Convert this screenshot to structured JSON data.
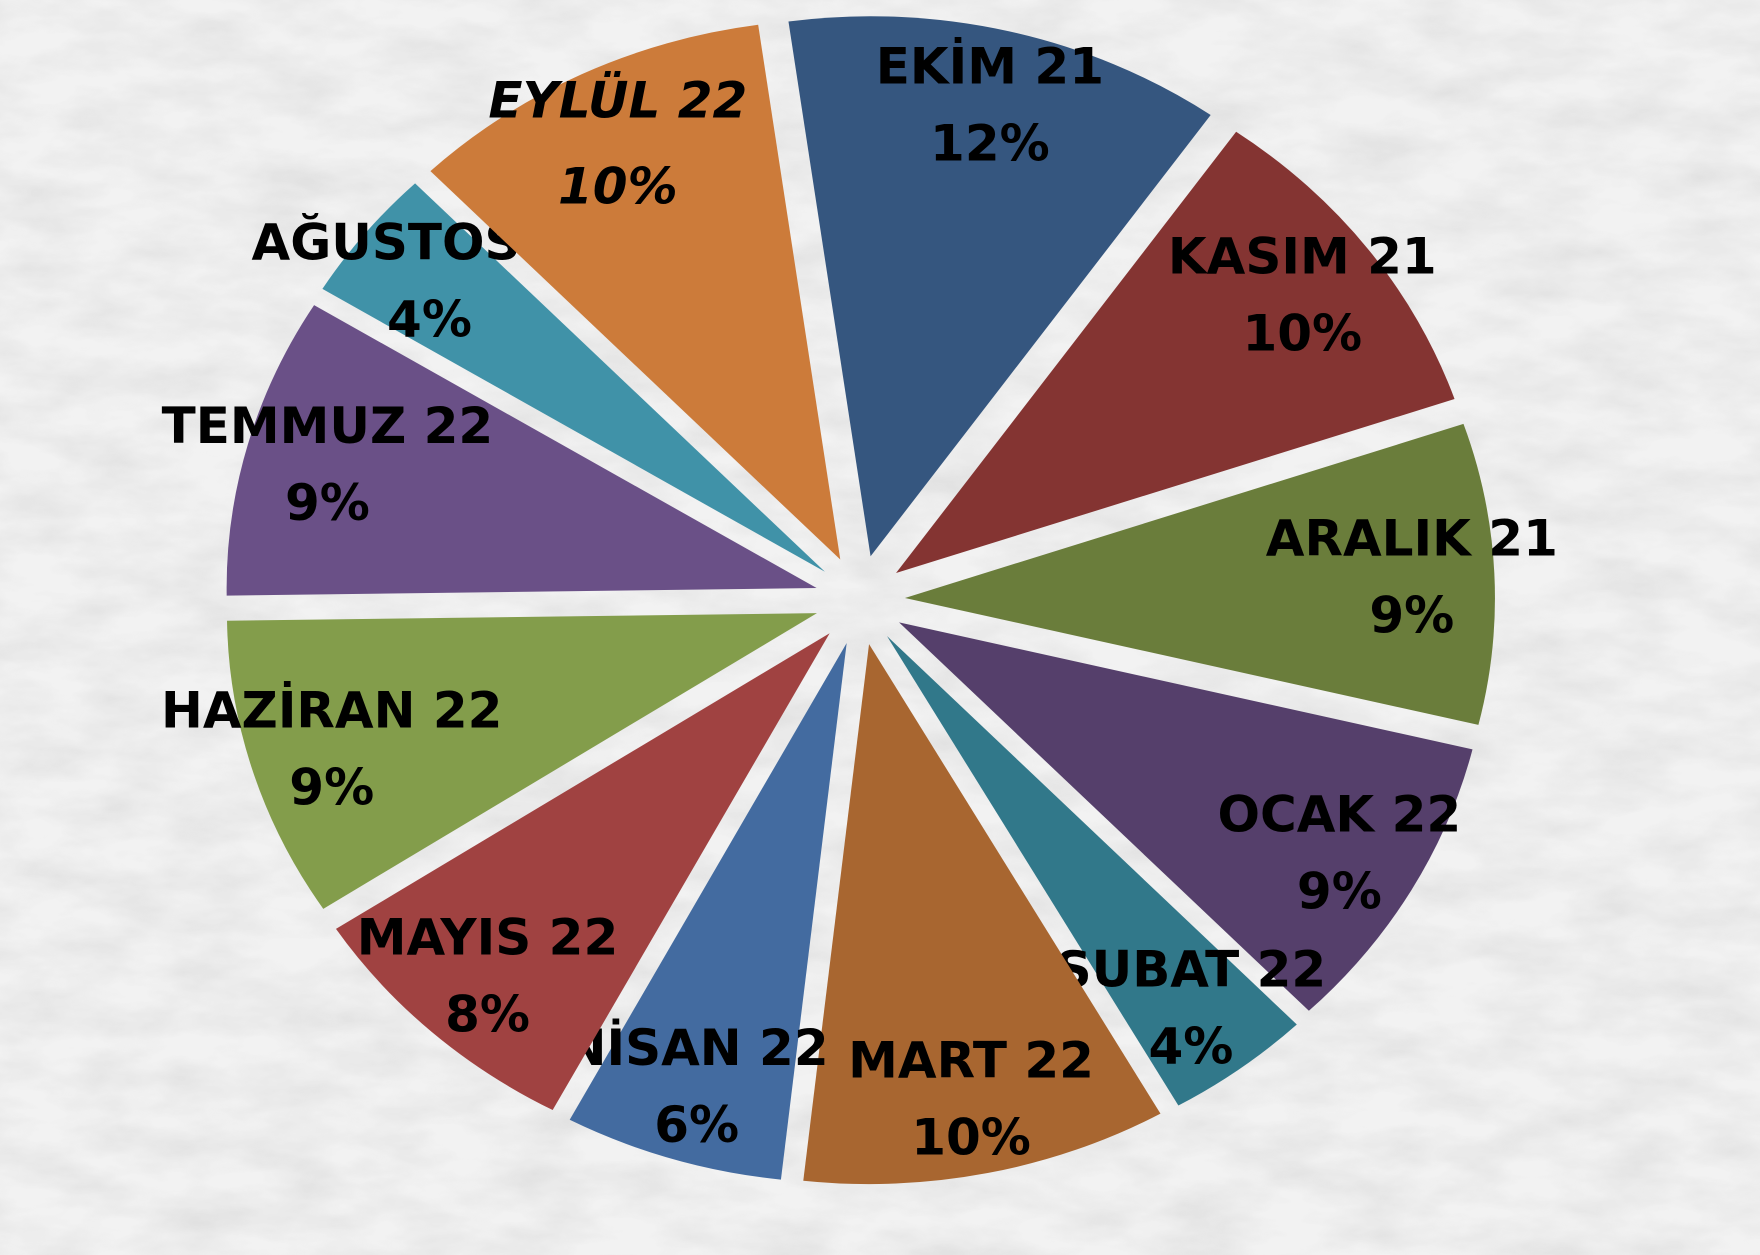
{
  "chart_data": {
    "type": "pie",
    "categories": [
      "EKİM 21",
      "KASIM 21",
      "ARALIK 21",
      "OCAK 22",
      "ŞUBAT 22",
      "MART 22",
      "NİSAN 22",
      "MAYIS 22",
      "HAZİRAN 22",
      "TEMMUZ 22",
      "AĞUSTOS 22",
      "EYLÜL 22"
    ],
    "values": [
      12,
      10,
      9,
      9,
      4,
      10,
      6,
      8,
      9,
      9,
      4,
      10
    ],
    "value_labels": [
      "12%",
      "10%",
      "9%",
      "9%",
      "4%",
      "10%",
      "6%",
      "8%",
      "9%",
      "9%",
      "4%",
      "10%"
    ],
    "colors": [
      "#35567f",
      "#843432",
      "#6a7d3b",
      "#553f6b",
      "#31788a",
      "#a86630",
      "#436ba0",
      "#a04241",
      "#839d4b",
      "#6a5087",
      "#4092a8",
      "#cc7b3a"
    ],
    "highlight_index": 11,
    "highlight_color": "#ff0000"
  }
}
